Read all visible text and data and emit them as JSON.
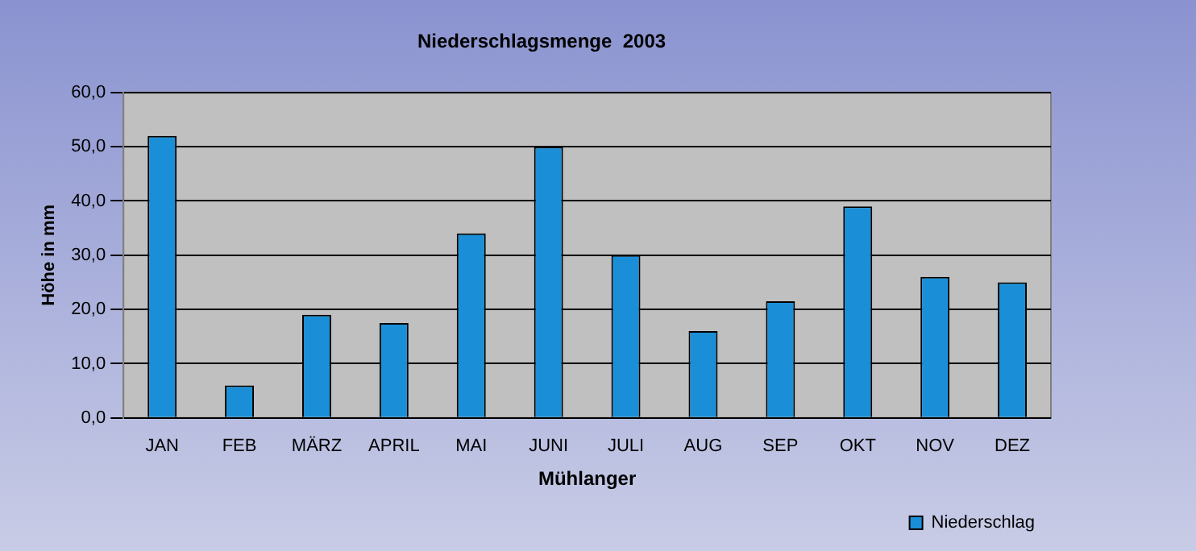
{
  "chart_data": {
    "type": "bar",
    "title": "Niederschlagsmenge  2003",
    "xlabel": "Mühlanger",
    "ylabel": "Höhe in mm",
    "categories": [
      "JAN",
      "FEB",
      "MÄRZ",
      "APRIL",
      "MAI",
      "JUNI",
      "JULI",
      "AUG",
      "SEP",
      "OKT",
      "NOV",
      "DEZ"
    ],
    "series": [
      {
        "name": "Niederschlag",
        "color": "#1a8fd8",
        "values": [
          52,
          6,
          19,
          17.5,
          34,
          50,
          30,
          16,
          21.5,
          39,
          26,
          25
        ]
      }
    ],
    "ylim": [
      0,
      60
    ],
    "yticks": [
      {
        "value": 0,
        "label": "0,0"
      },
      {
        "value": 10,
        "label": "10,0"
      },
      {
        "value": 20,
        "label": "20,0"
      },
      {
        "value": 30,
        "label": "30,0"
      },
      {
        "value": 40,
        "label": "40,0"
      },
      {
        "value": 50,
        "label": "50,0"
      },
      {
        "value": 60,
        "label": "60,0"
      }
    ],
    "grid": "y",
    "legend": "bottom right"
  }
}
